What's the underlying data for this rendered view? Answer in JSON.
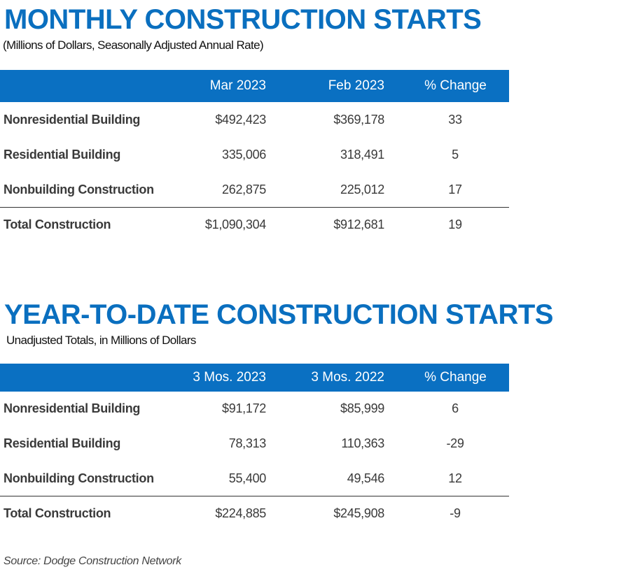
{
  "monthly": {
    "title": "MONTHLY CONSTRUCTION STARTS",
    "subtitle": "(Millions of Dollars, Seasonally Adjusted Annual Rate)",
    "headers": [
      "",
      "Mar 2023",
      "Feb 2023",
      "% Change"
    ],
    "rows": [
      [
        "Nonresidential Building",
        "$492,423",
        "$369,178",
        "33"
      ],
      [
        "Residential Building",
        "335,006",
        "318,491",
        "5"
      ],
      [
        "Nonbuilding Construction",
        "262,875",
        "225,012",
        "17"
      ]
    ],
    "total": [
      "Total Construction",
      "$1,090,304",
      "$912,681",
      "19"
    ]
  },
  "ytd": {
    "title": "YEAR-TO-DATE CONSTRUCTION STARTS",
    "subtitle": "Unadjusted Totals, in Millions of Dollars",
    "headers": [
      "",
      "3 Mos. 2023",
      "3 Mos. 2022",
      "% Change"
    ],
    "rows": [
      [
        "Nonresidential Building",
        "$91,172",
        "$85,999",
        "6"
      ],
      [
        "Residential Building",
        "78,313",
        "110,363",
        "-29"
      ],
      [
        "Nonbuilding Construction",
        "55,400",
        "49,546",
        "12"
      ]
    ],
    "total": [
      "Total Construction",
      "$224,885",
      "$245,908",
      "-9"
    ]
  },
  "source": "Source: Dodge Construction Network",
  "colors": {
    "accent": "#0a70c2",
    "text": "#3a3a3a"
  }
}
